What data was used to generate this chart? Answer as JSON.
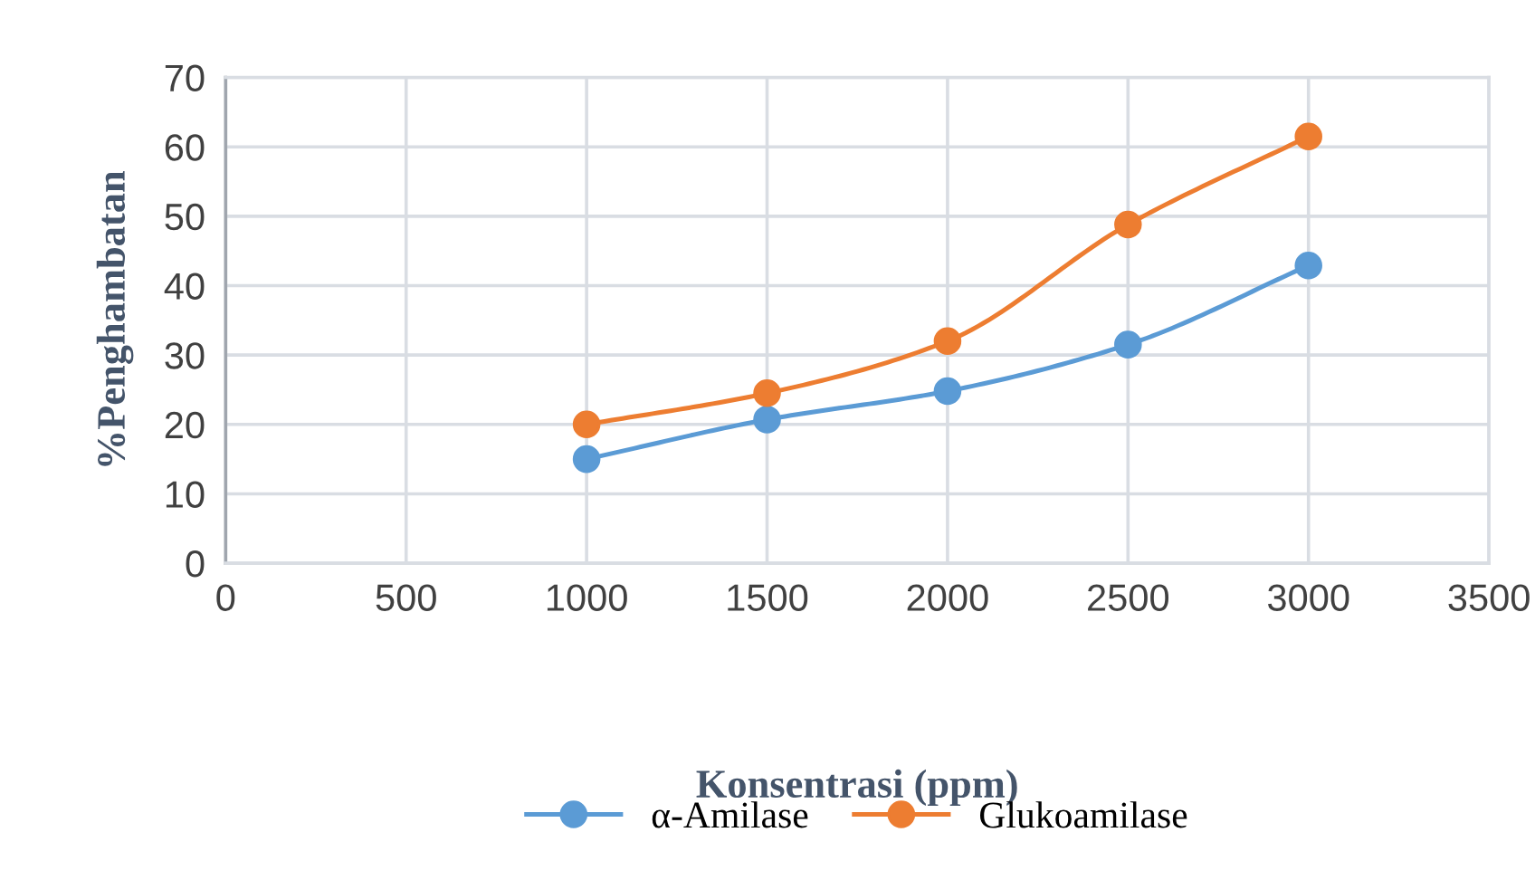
{
  "chart_data": {
    "type": "line",
    "xlabel": "Konsentrasi (ppm)",
    "ylabel": "%Penghambatan",
    "x": [
      1000,
      1500,
      2000,
      2500,
      3000
    ],
    "series": [
      {
        "name": "α-Amilase",
        "color": "#5b9bd5",
        "values": [
          15,
          20.7,
          24.8,
          31.5,
          42.9
        ]
      },
      {
        "name": "Glukoamilase",
        "color": "#ed7d31",
        "values": [
          20,
          24.5,
          32,
          48.8,
          61.5
        ]
      }
    ],
    "xlim": [
      0,
      3500
    ],
    "xticks": [
      0,
      500,
      1000,
      1500,
      2000,
      2500,
      3000,
      3500
    ],
    "ylim": [
      0,
      70
    ],
    "yticks": [
      0,
      10,
      20,
      30,
      40,
      50,
      60,
      70
    ],
    "grid": true,
    "legend": "bottom",
    "marker": "circle",
    "line_style": "solid"
  }
}
